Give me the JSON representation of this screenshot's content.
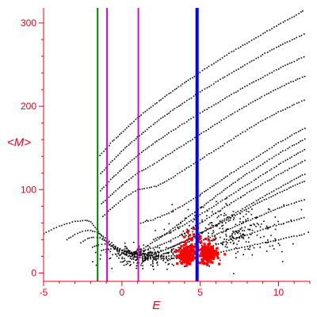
{
  "chart_data": {
    "type": "scatter",
    "title": "",
    "xlabel": "E",
    "ylabel": "<M>",
    "xlim": [
      -5,
      12
    ],
    "ylim": [
      -10,
      318
    ],
    "grid": false,
    "x_ticks": [
      -5,
      0,
      5,
      10
    ],
    "x_tick_labels": [
      "-5",
      "0",
      "5",
      "10"
    ],
    "y_ticks": [
      0,
      100,
      200,
      300
    ],
    "y_tick_labels": [
      "0",
      "100",
      "200",
      "300"
    ],
    "colors": {
      "axes": "#e8001c",
      "points_main": "#000000",
      "points_highlight": "#ff0000",
      "line_green": "#008000",
      "line_magenta": "#e000e0",
      "line_blue": "#0000ff"
    },
    "vertical_lines": [
      {
        "x": -1.55,
        "color": "#008000",
        "width": 2
      },
      {
        "x": -0.95,
        "color": "#e000e0",
        "width": 2
      },
      {
        "x": 1.05,
        "color": "#e000e0",
        "width": 2
      },
      {
        "x": 4.8,
        "color": "#0000ff",
        "width": 4
      }
    ],
    "series": [
      {
        "kind": "band",
        "points": [
          [
            -5,
            47
          ],
          [
            -4.5,
            52
          ],
          [
            -4,
            56
          ],
          [
            -3.5,
            59
          ],
          [
            -3,
            62
          ],
          [
            -2.5,
            63
          ],
          [
            -2.2,
            63
          ],
          [
            -2,
            61
          ],
          [
            -1.8,
            57
          ],
          [
            -1.5,
            50
          ],
          [
            -1.2,
            42
          ],
          [
            -0.8,
            34
          ],
          [
            -0.3,
            27
          ],
          [
            0.3,
            22
          ],
          [
            1,
            19
          ],
          [
            2,
            17
          ],
          [
            3,
            17
          ],
          [
            4,
            18
          ],
          [
            5,
            20
          ],
          [
            6,
            24
          ],
          [
            7,
            28
          ],
          [
            8,
            32
          ],
          [
            9,
            36
          ],
          [
            10,
            40
          ],
          [
            11,
            44
          ],
          [
            11.8,
            47
          ]
        ]
      },
      {
        "kind": "band",
        "points": [
          [
            -3.5,
            40
          ],
          [
            -3,
            46
          ],
          [
            -2.5,
            50
          ],
          [
            -2,
            51
          ],
          [
            -1.6,
            49
          ],
          [
            -1.2,
            44
          ],
          [
            -0.8,
            38
          ],
          [
            -0.4,
            32
          ],
          [
            0.2,
            26
          ],
          [
            1,
            21
          ],
          [
            2,
            19
          ],
          [
            3,
            20
          ],
          [
            4,
            23
          ],
          [
            5,
            28
          ],
          [
            6,
            34
          ],
          [
            7,
            40
          ],
          [
            8,
            46
          ],
          [
            9,
            52
          ],
          [
            10,
            58
          ],
          [
            11,
            63
          ],
          [
            11.8,
            67
          ]
        ]
      },
      {
        "kind": "band",
        "points": [
          [
            -2.6,
            36
          ],
          [
            -2.2,
            41
          ],
          [
            -1.8,
            43
          ],
          [
            -1.4,
            42
          ],
          [
            -1,
            38
          ],
          [
            -0.6,
            33
          ],
          [
            0,
            27
          ],
          [
            0.8,
            23
          ],
          [
            1.6,
            21
          ],
          [
            2.5,
            22
          ],
          [
            3.5,
            27
          ],
          [
            4.5,
            34
          ],
          [
            5.5,
            42
          ],
          [
            6.5,
            50
          ],
          [
            7.5,
            58
          ],
          [
            8.5,
            66
          ],
          [
            9.5,
            74
          ],
          [
            10.5,
            81
          ],
          [
            11.8,
            89
          ]
        ]
      },
      {
        "kind": "band",
        "points": [
          [
            -1.9,
            31
          ],
          [
            -1.5,
            34
          ],
          [
            -1.1,
            35
          ],
          [
            -0.7,
            33
          ],
          [
            -0.3,
            29
          ],
          [
            0.3,
            25
          ],
          [
            1,
            23
          ],
          [
            1.8,
            24
          ],
          [
            2.8,
            28
          ],
          [
            3.8,
            36
          ],
          [
            4.8,
            45
          ],
          [
            5.8,
            55
          ],
          [
            6.8,
            65
          ],
          [
            7.8,
            75
          ],
          [
            8.8,
            85
          ],
          [
            9.8,
            94
          ],
          [
            10.8,
            103
          ],
          [
            11.8,
            111
          ]
        ]
      },
      {
        "kind": "band",
        "points": [
          [
            -1.3,
            27
          ],
          [
            -0.9,
            29
          ],
          [
            -0.5,
            29
          ],
          [
            0,
            27
          ],
          [
            0.6,
            25
          ],
          [
            1.2,
            26
          ],
          [
            2,
            30
          ],
          [
            3,
            38
          ],
          [
            4,
            48
          ],
          [
            5,
            60
          ],
          [
            6,
            72
          ],
          [
            7,
            84
          ],
          [
            8,
            96
          ],
          [
            9,
            107
          ],
          [
            10,
            118
          ],
          [
            11,
            128
          ],
          [
            11.8,
            136
          ]
        ]
      },
      {
        "kind": "band",
        "points": [
          [
            -0.6,
            22
          ],
          [
            -0.2,
            23
          ],
          [
            0.3,
            23
          ],
          [
            0.8,
            25
          ],
          [
            1.4,
            30
          ],
          [
            2.1,
            38
          ],
          [
            3,
            50
          ],
          [
            4,
            64
          ],
          [
            5,
            78
          ],
          [
            6,
            92
          ],
          [
            7,
            106
          ],
          [
            8,
            119
          ],
          [
            9,
            131
          ],
          [
            10,
            143
          ],
          [
            11,
            154
          ],
          [
            11.8,
            162
          ]
        ]
      },
      {
        "kind": "band",
        "points": [
          [
            -1.2,
            68
          ],
          [
            -0.5,
            80
          ],
          [
            0.3,
            92
          ],
          [
            1,
            100
          ],
          [
            1.6,
            102
          ],
          [
            2.2,
            104
          ],
          [
            3,
            112
          ],
          [
            4,
            124
          ],
          [
            5,
            136
          ],
          [
            6,
            148
          ],
          [
            7,
            160
          ],
          [
            8,
            172
          ],
          [
            9,
            183
          ],
          [
            10,
            193
          ],
          [
            11,
            202
          ],
          [
            11.8,
            209
          ]
        ]
      },
      {
        "kind": "band",
        "points": [
          [
            -1.3,
            83
          ],
          [
            -0.5,
            97
          ],
          [
            0.3,
            110
          ],
          [
            1,
            120
          ],
          [
            1.8,
            128
          ],
          [
            2.8,
            140
          ],
          [
            3.8,
            152
          ],
          [
            4.8,
            164
          ],
          [
            5.8,
            176
          ],
          [
            6.8,
            188
          ],
          [
            7.8,
            199
          ],
          [
            8.8,
            210
          ],
          [
            9.8,
            220
          ],
          [
            10.8,
            229
          ],
          [
            11.8,
            237
          ]
        ]
      },
      {
        "kind": "band",
        "points": [
          [
            -1.35,
            99
          ],
          [
            -0.6,
            114
          ],
          [
            0.2,
            128
          ],
          [
            1,
            141
          ],
          [
            2,
            155
          ],
          [
            3,
            168
          ],
          [
            4,
            180
          ],
          [
            5,
            192
          ],
          [
            6,
            203
          ],
          [
            7,
            214
          ],
          [
            8,
            225
          ],
          [
            9,
            235
          ],
          [
            10,
            245
          ],
          [
            11,
            254
          ],
          [
            11.8,
            261
          ]
        ]
      },
      {
        "kind": "band",
        "points": [
          [
            -1.35,
            119
          ],
          [
            -0.6,
            135
          ],
          [
            0.2,
            150
          ],
          [
            1,
            163
          ],
          [
            2,
            178
          ],
          [
            3,
            192
          ],
          [
            4,
            205
          ],
          [
            5,
            217
          ],
          [
            6,
            229
          ],
          [
            7,
            240
          ],
          [
            8,
            251
          ],
          [
            9,
            262
          ],
          [
            10,
            272
          ],
          [
            11,
            281
          ],
          [
            11.8,
            288
          ]
        ]
      },
      {
        "kind": "band",
        "points": [
          [
            -1.4,
            141
          ],
          [
            -0.6,
            158
          ],
          [
            0.2,
            172
          ],
          [
            1,
            186
          ],
          [
            2,
            201
          ],
          [
            3,
            215
          ],
          [
            4,
            228
          ],
          [
            5,
            241
          ],
          [
            6,
            253
          ],
          [
            7,
            265
          ],
          [
            8,
            276
          ],
          [
            9,
            287
          ],
          [
            10,
            298
          ],
          [
            11,
            308
          ],
          [
            11.7,
            316
          ]
        ]
      },
      {
        "kind": "band",
        "points": [
          [
            1.2,
            60
          ],
          [
            2,
            64
          ],
          [
            3,
            72
          ],
          [
            4,
            82
          ],
          [
            5,
            94
          ],
          [
            6,
            107
          ],
          [
            7,
            120
          ],
          [
            8,
            132
          ],
          [
            9,
            144
          ],
          [
            10,
            156
          ],
          [
            11,
            167
          ],
          [
            11.8,
            175
          ]
        ]
      },
      {
        "kind": "band",
        "points": [
          [
            2,
            40
          ],
          [
            3,
            48
          ],
          [
            4,
            58
          ],
          [
            5,
            70
          ],
          [
            6,
            82
          ],
          [
            7,
            94
          ],
          [
            8,
            106
          ],
          [
            9,
            118
          ],
          [
            10,
            130
          ],
          [
            11,
            141
          ],
          [
            11.8,
            149
          ]
        ]
      },
      {
        "kind": "band",
        "points": [
          [
            3,
            30
          ],
          [
            4,
            38
          ],
          [
            5,
            48
          ],
          [
            6,
            58
          ],
          [
            7,
            69
          ],
          [
            8,
            80
          ],
          [
            9,
            91
          ],
          [
            10,
            102
          ],
          [
            11,
            112
          ],
          [
            11.8,
            120
          ]
        ]
      }
    ],
    "clusters": [
      {
        "color": "#000000",
        "center": [
          1.5,
          20
        ],
        "spread": [
          2.2,
          10
        ],
        "count": 260
      },
      {
        "color": "#000000",
        "center": [
          7,
          50
        ],
        "spread": [
          3,
          25
        ],
        "count": 260
      },
      {
        "color": "#ff0000",
        "center": [
          4.1,
          22
        ],
        "spread": [
          0.45,
          9
        ],
        "count": 150
      },
      {
        "color": "#ff0000",
        "center": [
          5.5,
          22
        ],
        "spread": [
          0.5,
          9
        ],
        "count": 170
      },
      {
        "color": "#ff0000",
        "center": [
          4.8,
          40
        ],
        "spread": [
          0.8,
          10
        ],
        "count": 30
      }
    ]
  }
}
